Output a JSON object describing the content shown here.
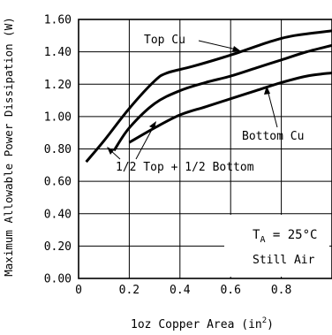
{
  "chart_data": {
    "type": "line",
    "title": "",
    "xlabel_main": "1oz Copper Area (in",
    "xlabel_sup": "2",
    "xlabel_close": ")",
    "ylabel": "Maximum Allowable Power Dissipation (W)",
    "xlim": [
      0,
      1.0
    ],
    "ylim": [
      0,
      1.6
    ],
    "x_ticks": [
      {
        "value": 0,
        "label": "0"
      },
      {
        "value": 0.2,
        "label": "0.2"
      },
      {
        "value": 0.4,
        "label": "0.4"
      },
      {
        "value": 0.6,
        "label": "0.6"
      },
      {
        "value": 0.8,
        "label": "0.8"
      }
    ],
    "y_ticks": [
      {
        "value": 0,
        "label": "0.00"
      },
      {
        "value": 0.2,
        "label": "0.20"
      },
      {
        "value": 0.4,
        "label": "0.40"
      },
      {
        "value": 0.6,
        "label": "0.60"
      },
      {
        "value": 0.8,
        "label": "0.80"
      },
      {
        "value": 1.0,
        "label": "1.00"
      },
      {
        "value": 1.2,
        "label": "1.20"
      },
      {
        "value": 1.4,
        "label": "1.40"
      },
      {
        "value": 1.6,
        "label": "1.60"
      }
    ],
    "grid": true,
    "series": [
      {
        "name": "Top Cu",
        "x": [
          0.03,
          0.1,
          0.2,
          0.3,
          0.35,
          0.45,
          0.6,
          0.75,
          0.85,
          1.0
        ],
        "y": [
          0.72,
          0.85,
          1.05,
          1.22,
          1.27,
          1.31,
          1.38,
          1.46,
          1.5,
          1.53
        ]
      },
      {
        "name": "1/2 Top + 1/2 Bottom",
        "x": [
          0.14,
          0.2,
          0.3,
          0.4,
          0.5,
          0.6,
          0.7,
          0.8,
          0.9,
          1.0
        ],
        "y": [
          0.79,
          0.93,
          1.08,
          1.16,
          1.21,
          1.25,
          1.3,
          1.35,
          1.4,
          1.44
        ]
      },
      {
        "name": "Bottom Cu",
        "x": [
          0.2,
          0.3,
          0.4,
          0.5,
          0.6,
          0.7,
          0.8,
          0.9,
          1.0
        ],
        "y": [
          0.84,
          0.93,
          1.01,
          1.06,
          1.11,
          1.16,
          1.21,
          1.25,
          1.27
        ]
      }
    ],
    "annotations": {
      "top_cu": "Top Cu",
      "bottom_cu": "Bottom Cu",
      "half_half": "1/2 Top + 1/2 Bottom",
      "ta_main": "T",
      "ta_sub": "A",
      "ta_value": " = 25°C",
      "still_air": "Still Air"
    }
  }
}
